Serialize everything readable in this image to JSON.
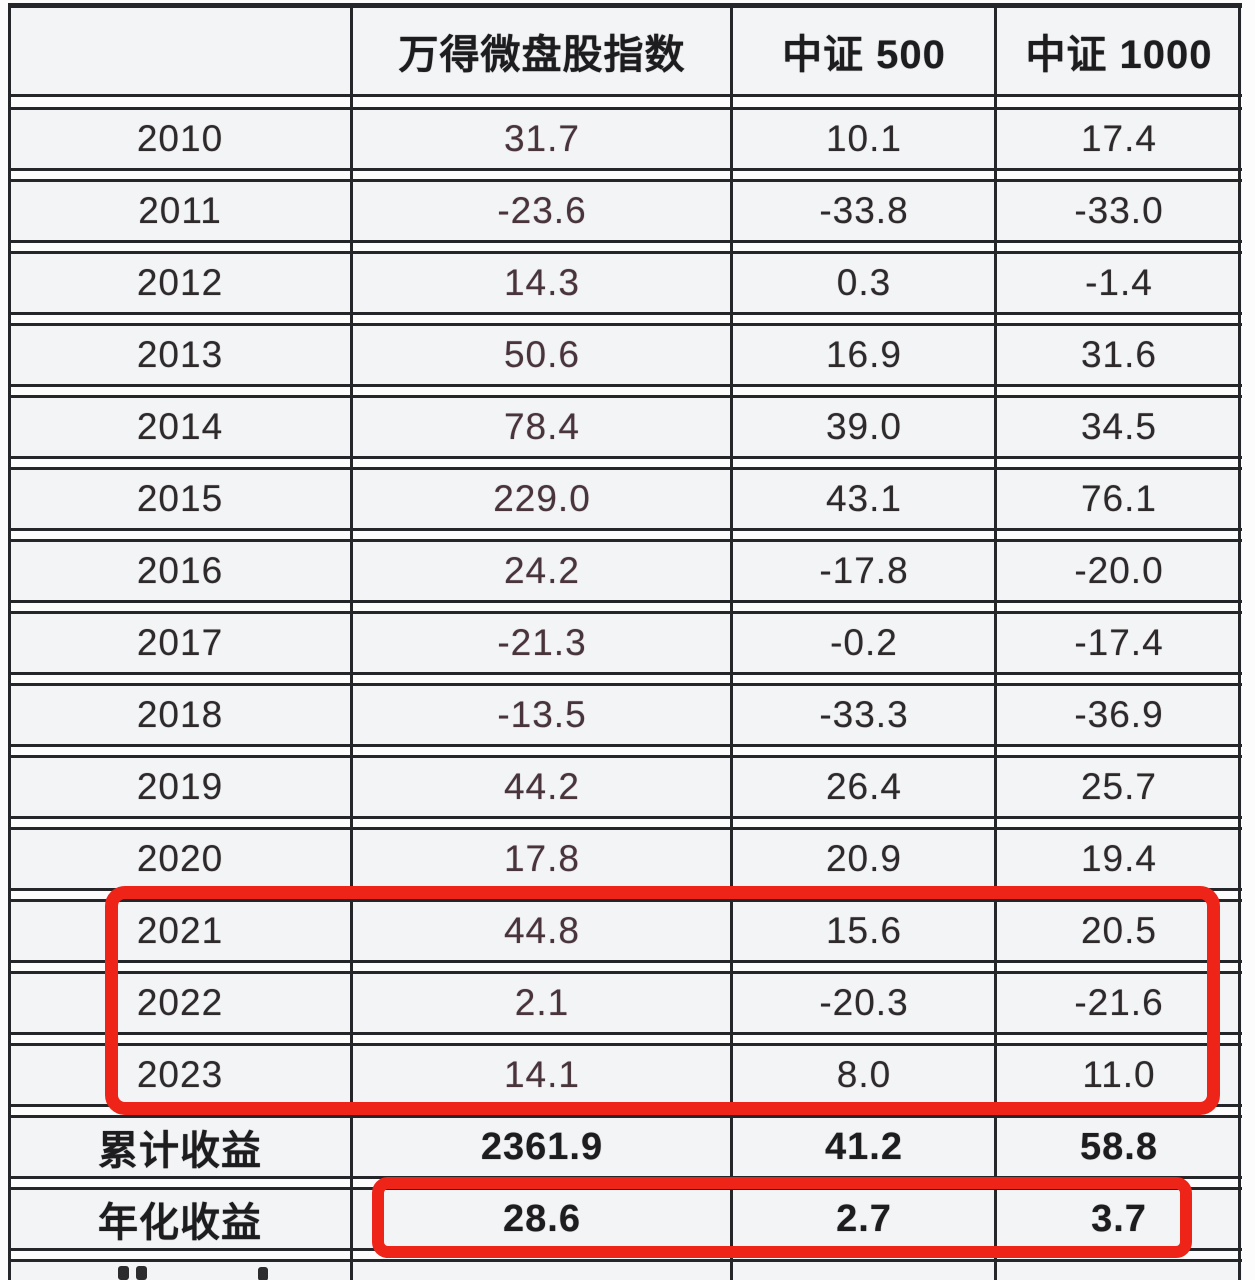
{
  "table": {
    "columns": [
      "",
      "万得微盘股指数",
      "中证 500",
      "中证 1000"
    ],
    "rows": [
      {
        "label": "2010",
        "values": [
          "31.7",
          "10.1",
          "17.4"
        ]
      },
      {
        "label": "2011",
        "values": [
          "-23.6",
          "-33.8",
          "-33.0"
        ]
      },
      {
        "label": "2012",
        "values": [
          "14.3",
          "0.3",
          "-1.4"
        ]
      },
      {
        "label": "2013",
        "values": [
          "50.6",
          "16.9",
          "31.6"
        ]
      },
      {
        "label": "2014",
        "values": [
          "78.4",
          "39.0",
          "34.5"
        ]
      },
      {
        "label": "2015",
        "values": [
          "229.0",
          "43.1",
          "76.1"
        ]
      },
      {
        "label": "2016",
        "values": [
          "24.2",
          "-17.8",
          "-20.0"
        ]
      },
      {
        "label": "2017",
        "values": [
          "-21.3",
          "-0.2",
          "-17.4"
        ]
      },
      {
        "label": "2018",
        "values": [
          "-13.5",
          "-33.3",
          "-36.9"
        ]
      },
      {
        "label": "2019",
        "values": [
          "44.2",
          "26.4",
          "25.7"
        ]
      },
      {
        "label": "2020",
        "values": [
          "17.8",
          "20.9",
          "19.4"
        ]
      },
      {
        "label": "2021",
        "values": [
          "44.8",
          "15.6",
          "20.5"
        ]
      },
      {
        "label": "2022",
        "values": [
          "2.1",
          "-20.3",
          "-21.6"
        ]
      },
      {
        "label": "2023",
        "values": [
          "14.1",
          "8.0",
          "11.0"
        ]
      }
    ],
    "summary_rows": [
      {
        "label": "累计收益",
        "values": [
          "2361.9",
          "41.2",
          "58.8"
        ]
      },
      {
        "label": "年化收益",
        "values": [
          "28.6",
          "2.7",
          "3.7"
        ]
      }
    ]
  },
  "annotations": {
    "highlight_color": "#ee2418",
    "highlighted_year_rows": [
      "2021",
      "2022",
      "2023"
    ],
    "highlighted_summary_values_row": "年化收益"
  },
  "chart_data": {
    "type": "table",
    "title": "",
    "columns": [
      "",
      "万得微盘股指数",
      "中证 500",
      "中证 1000"
    ],
    "categories": [
      "2010",
      "2011",
      "2012",
      "2013",
      "2014",
      "2015",
      "2016",
      "2017",
      "2018",
      "2019",
      "2020",
      "2021",
      "2022",
      "2023",
      "累计收益",
      "年化收益"
    ],
    "series": [
      {
        "name": "万得微盘股指数",
        "values": [
          31.7,
          -23.6,
          14.3,
          50.6,
          78.4,
          229.0,
          24.2,
          -21.3,
          -13.5,
          44.2,
          17.8,
          44.8,
          2.1,
          14.1,
          2361.9,
          28.6
        ]
      },
      {
        "name": "中证 500",
        "values": [
          10.1,
          -33.8,
          0.3,
          16.9,
          39.0,
          43.1,
          -17.8,
          -0.2,
          -33.3,
          26.4,
          20.9,
          15.6,
          -20.3,
          8.0,
          41.2,
          2.7
        ]
      },
      {
        "name": "中证 1000",
        "values": [
          17.4,
          -33.0,
          -1.4,
          31.6,
          34.5,
          76.1,
          -20.0,
          -17.4,
          -36.9,
          25.7,
          19.4,
          20.5,
          -21.6,
          11.0,
          58.8,
          3.7
        ]
      }
    ],
    "summary_row_labels": [
      "累计收益",
      "年化收益"
    ]
  }
}
